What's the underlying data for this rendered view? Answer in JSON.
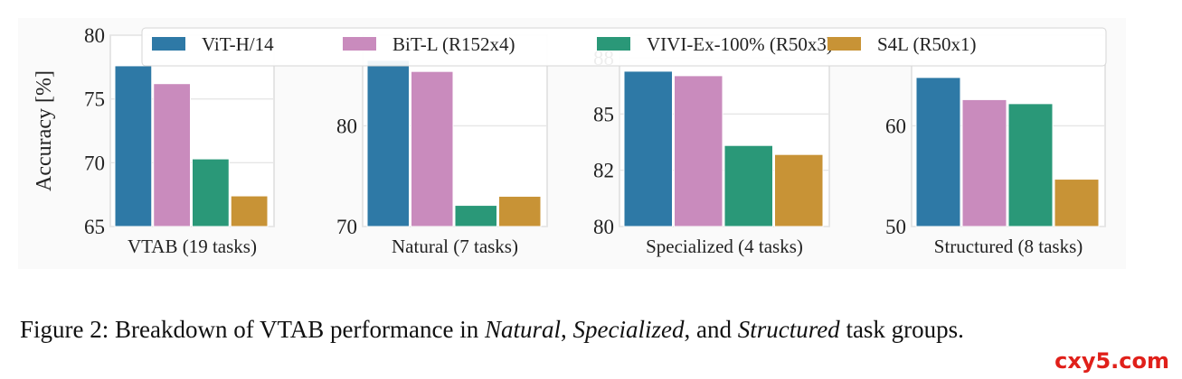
{
  "chart_data": [
    {
      "type": "bar",
      "title": "",
      "xlabel": "VTAB (19 tasks)",
      "ylabel": "Accuracy [%]",
      "ylim": [
        65,
        80
      ],
      "yticks": [
        "65",
        "70",
        "75",
        "80"
      ],
      "ytick_values": [
        65,
        70,
        75,
        80
      ],
      "values": [
        77.6,
        76.2,
        70.3,
        67.4
      ]
    },
    {
      "type": "bar",
      "title": "",
      "xlabel": "Natural (7 tasks)",
      "ylabel": "",
      "ylim": [
        70,
        89
      ],
      "yticks": [
        "70",
        "80"
      ],
      "ytick_values": [
        70,
        80
      ],
      "values": [
        86.5,
        85.4,
        72.1,
        73.0
      ]
    },
    {
      "type": "bar",
      "title": "",
      "xlabel": "Specialized (4 tasks)",
      "ylabel": "",
      "ylim": [
        80,
        88.5
      ],
      "yticks": [
        "80",
        "82",
        "85",
        "88"
      ],
      "ytick_values": [
        80,
        82.5,
        85,
        87.5
      ],
      "values": [
        86.9,
        86.7,
        83.6,
        83.2
      ]
    },
    {
      "type": "bar",
      "title": "",
      "xlabel": "Structured (8 tasks)",
      "ylabel": "",
      "ylim": [
        50,
        69
      ],
      "yticks": [
        "50",
        "60"
      ],
      "ytick_values": [
        50,
        60
      ],
      "values": [
        64.8,
        62.6,
        62.2,
        54.7
      ]
    }
  ],
  "legend": [
    {
      "name": "ViT-H/14",
      "color": "#2e79a6"
    },
    {
      "name": "BiT-L (R152x4)",
      "color": "#c98bbd"
    },
    {
      "name": "VIVI-Ex-100% (R50x3)",
      "color": "#2a9878"
    },
    {
      "name": "S4L (R50x1)",
      "color": "#c89336"
    }
  ],
  "legend_placement": "top",
  "caption": {
    "prefix": "Figure 2: Breakdown of VTAB performance in ",
    "natural": "Natural",
    ", ": ", ",
    "sep1": ", ",
    "specialized": "Specialized",
    "sep2": ", and ",
    "structured": "Structured",
    "suffix": " task groups."
  },
  "watermark": "cxy5.com"
}
